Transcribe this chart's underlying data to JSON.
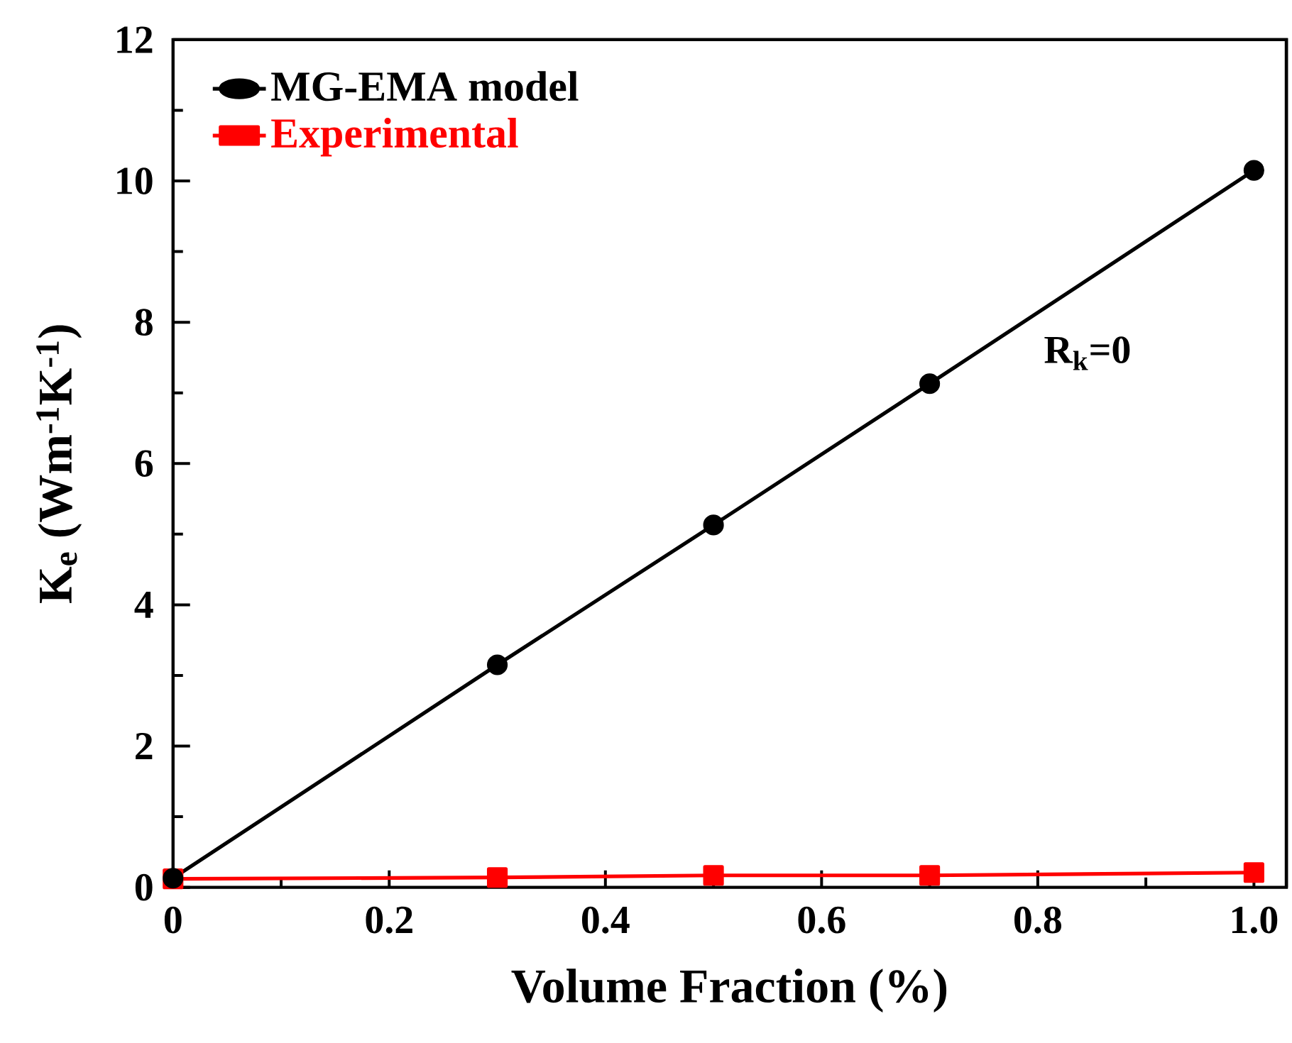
{
  "chart_data": {
    "type": "line",
    "xlabel": "Volume Fraction (%)",
    "ylabel": "K$_{e}$ (Wm$^{-1}$K$^{-1}$)",
    "x": [
      0,
      0.3,
      0.5,
      0.7,
      1.0
    ],
    "series": [
      {
        "name": "MG-EMA  model",
        "color": "#000000",
        "marker": "circle",
        "values": [
          0.13,
          3.15,
          5.13,
          7.13,
          10.15
        ]
      },
      {
        "name": "Experimental",
        "color": "#ff0000",
        "marker": "square",
        "values": [
          0.12,
          0.14,
          0.17,
          0.17,
          0.21
        ]
      }
    ],
    "xlim": [
      0,
      1.03
    ],
    "xticks": [
      0,
      0.2,
      0.4,
      0.6,
      0.8,
      {
        "value": 1.0,
        "label": "1.0"
      }
    ],
    "ylim": [
      0,
      12
    ],
    "yticks": [
      0,
      2,
      4,
      6,
      8,
      10,
      12
    ],
    "annotations": [
      "R$_{k}$=0"
    ],
    "legend": "top left",
    "grid": false,
    "line_style": "solid"
  }
}
